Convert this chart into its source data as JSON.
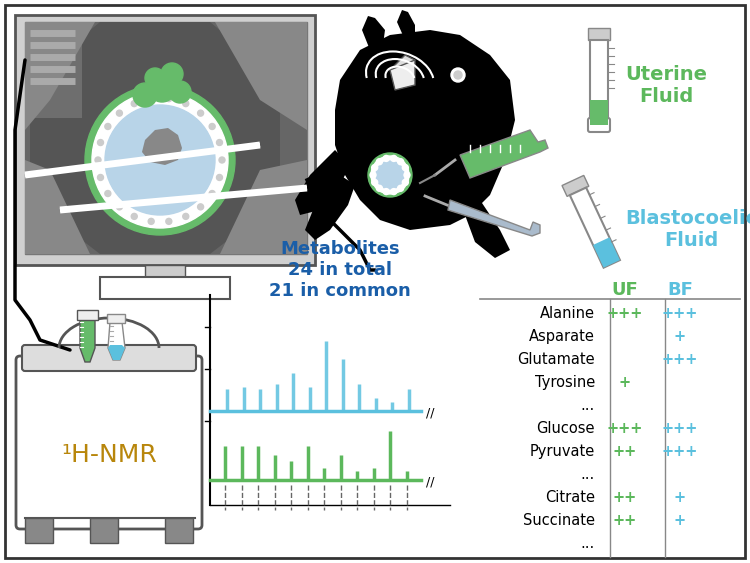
{
  "bg_color": "#ffffff",
  "border_color": "#333333",
  "uf_color": "#5cb85c",
  "bf_color": "#5bc0de",
  "uterine_fluid_label": "Uterine\nFluid",
  "blastocoelic_fluid_label": "Blastocoelic\nFluid",
  "metabolites_text": "Metabolites\n24 in total\n21 in common",
  "metabolites_color": "#1a5ea8",
  "nmr_label": "¹H-NMR",
  "nmr_color": "#b8860b",
  "table_rows": [
    {
      "name": "Alanine",
      "uf": "+++",
      "bf": "+++"
    },
    {
      "name": "Asparate",
      "uf": "",
      "bf": "+"
    },
    {
      "name": "Glutamate",
      "uf": "",
      "bf": "+++"
    },
    {
      "name": "Tyrosine",
      "uf": "+",
      "bf": ""
    },
    {
      "name": "...",
      "uf": "",
      "bf": ""
    },
    {
      "name": "Glucose",
      "uf": "+++",
      "bf": "+++"
    },
    {
      "name": "Pyruvate",
      "uf": "++",
      "bf": "+++"
    },
    {
      "name": "...",
      "uf": "",
      "bf": ""
    },
    {
      "name": "Citrate",
      "uf": "++",
      "bf": "+"
    },
    {
      "name": "Succinate",
      "uf": "++",
      "bf": "+"
    },
    {
      "name": "...",
      "uf": "",
      "bf": ""
    }
  ],
  "table_header_uf": "UF",
  "table_header_bf": "BF",
  "green_peaks": [
    0.55,
    0.55,
    0.55,
    0.4,
    0.3,
    0.55,
    0.2,
    0.4,
    0.15,
    0.2,
    0.8,
    0.15
  ],
  "blue_peaks": [
    0.2,
    0.22,
    0.2,
    0.25,
    0.35,
    0.22,
    0.65,
    0.48,
    0.25,
    0.12,
    0.08,
    0.2
  ]
}
